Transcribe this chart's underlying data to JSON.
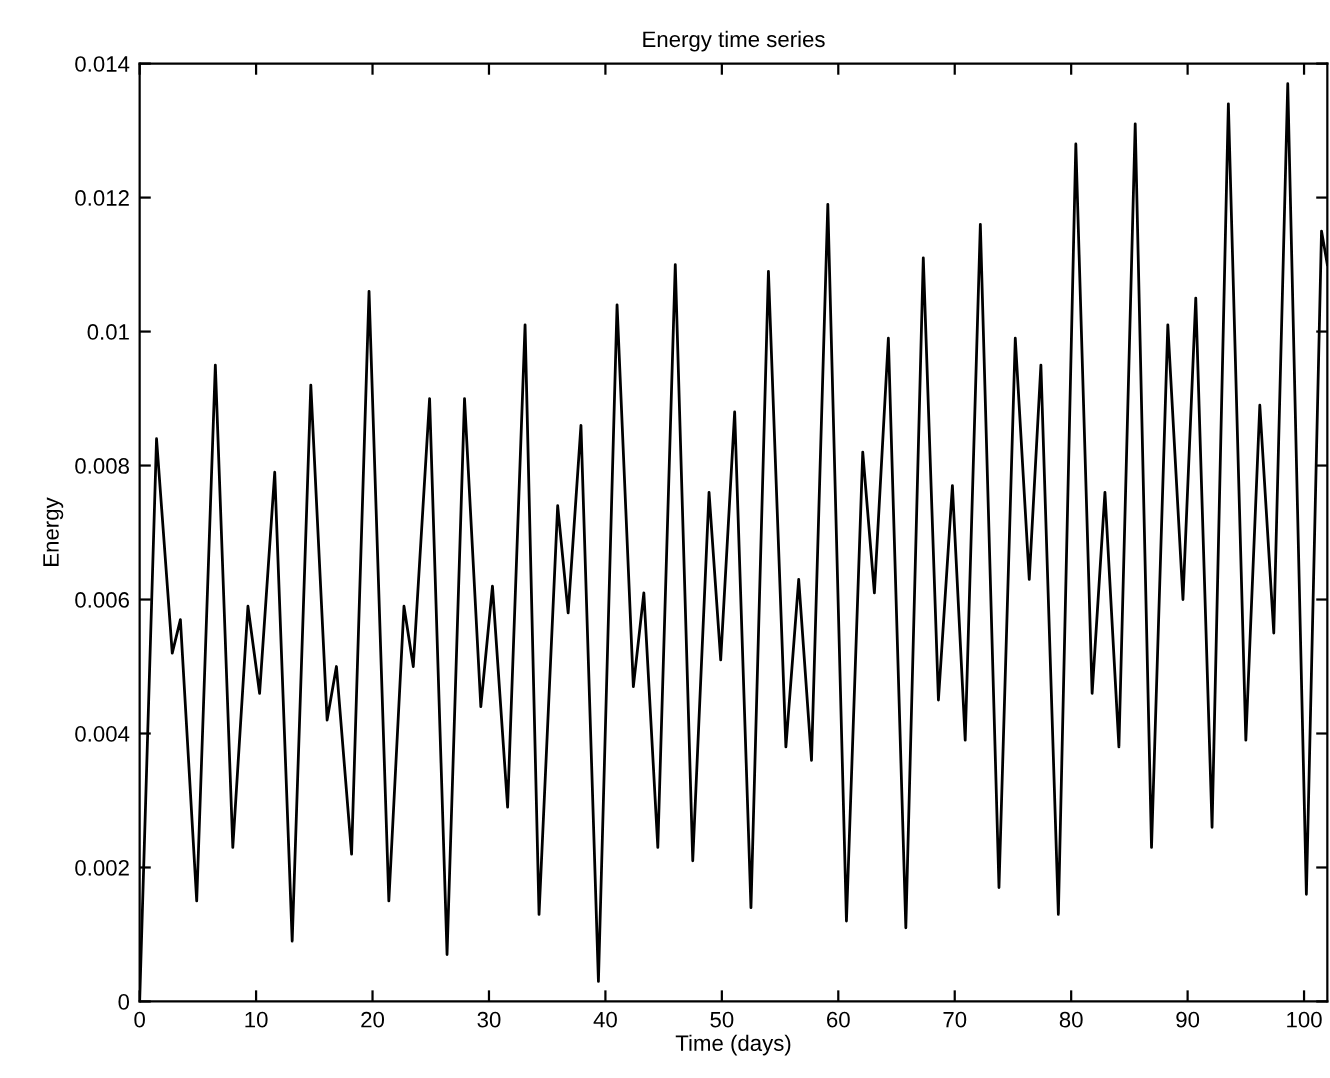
{
  "chart_data": {
    "type": "line",
    "title": "Energy time series",
    "xlabel": "Time (days)",
    "ylabel": "Energy",
    "series": [
      {
        "color": "#000000",
        "x": [
          0,
          1.45,
          2.8,
          3.5,
          4.9,
          6.5,
          8.0,
          9.3,
          10.3,
          11.6,
          13.1,
          14.7,
          16.1,
          16.9,
          18.2,
          19.7,
          21.4,
          22.7,
          23.5,
          24.9,
          26.4,
          27.9,
          29.3,
          30.3,
          31.6,
          33.1,
          34.3,
          35.9,
          36.8,
          37.9,
          39.4,
          41.0,
          42.4,
          43.3,
          44.5,
          46.0,
          47.5,
          48.9,
          49.9,
          51.1,
          52.5,
          54.0,
          55.5,
          56.6,
          57.7,
          59.1,
          60.7,
          62.1,
          63.1,
          64.3,
          65.8,
          67.3,
          68.6,
          69.8,
          70.9,
          72.2,
          73.8,
          75.2,
          76.4,
          77.4,
          78.9,
          80.4,
          81.8,
          82.9,
          84.1,
          85.5,
          86.9,
          88.3,
          89.6,
          90.7,
          92.1,
          93.5,
          95.0,
          96.2,
          97.4,
          98.6,
          100.2,
          101.5,
          102
        ],
        "values": [
          0,
          0.0084,
          0.0052,
          0.0057,
          0.0015,
          0.0095,
          0.0023,
          0.0059,
          0.0046,
          0.0079,
          0.0009,
          0.0092,
          0.0042,
          0.005,
          0.0022,
          0.0106,
          0.0015,
          0.0059,
          0.005,
          0.009,
          0.0007,
          0.009,
          0.0044,
          0.0062,
          0.0029,
          0.0101,
          0.0013,
          0.0074,
          0.0058,
          0.0086,
          0.0003,
          0.0104,
          0.0047,
          0.0061,
          0.0023,
          0.011,
          0.0021,
          0.0076,
          0.0051,
          0.0088,
          0.0014,
          0.0109,
          0.0038,
          0.0063,
          0.0036,
          0.0119,
          0.0012,
          0.0082,
          0.0061,
          0.0099,
          0.0011,
          0.0111,
          0.0045,
          0.0077,
          0.0039,
          0.0116,
          0.0017,
          0.0099,
          0.0063,
          0.0095,
          0.0013,
          0.0128,
          0.0046,
          0.0076,
          0.0038,
          0.0131,
          0.0023,
          0.0101,
          0.006,
          0.0105,
          0.0026,
          0.0134,
          0.0039,
          0.0089,
          0.0055,
          0.0137,
          0.0016,
          0.0115,
          0.011
        ]
      }
    ],
    "xlim": [
      0,
      102
    ],
    "ylim": [
      0,
      0.014
    ],
    "xticks": [
      0,
      10,
      20,
      30,
      40,
      50,
      60,
      70,
      80,
      90,
      100
    ],
    "yticks": [
      0,
      0.002,
      0.004,
      0.006,
      0.008,
      0.01,
      0.012,
      0.014
    ],
    "grid": false,
    "line_style": "solid",
    "marker": "none"
  }
}
